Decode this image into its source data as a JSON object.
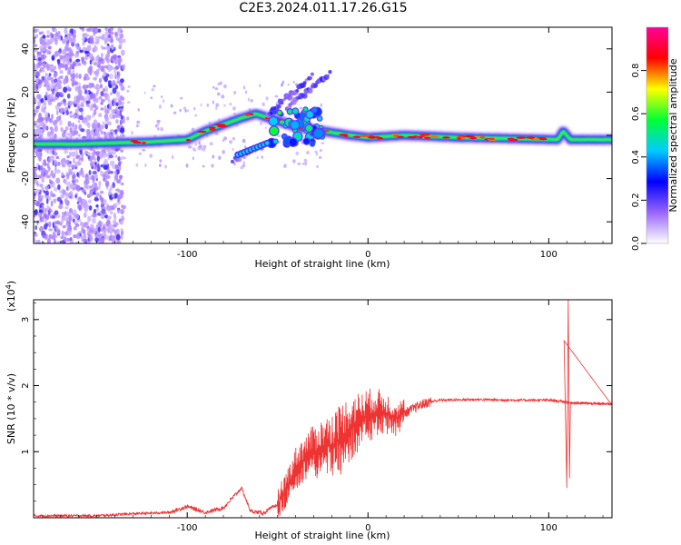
{
  "page_title": "C2E3.2024.011.17.26.G15",
  "chart_data": [
    {
      "type": "heatmap",
      "xlabel": "Height of straight line (km)",
      "ylabel": "Frequency (Hz)",
      "xlim": [
        -185,
        135
      ],
      "ylim": [
        -50,
        50
      ],
      "x_ticks": [
        -100,
        0,
        100
      ],
      "y_ticks": [
        -40,
        -20,
        0,
        20,
        40
      ],
      "colorbar": {
        "label": "Normalized spectral amplitude",
        "range": [
          0,
          1
        ],
        "ticks": [
          "0.0",
          "0.2",
          "0.4",
          "0.6",
          "0.8"
        ],
        "tick_values": [
          0,
          0.2,
          0.4,
          0.6,
          0.8
        ],
        "colormap": [
          "#ffffff",
          "#9966ff",
          "#0000ff",
          "#00ccff",
          "#00ff33",
          "#ffff00",
          "#ff0000",
          "#ff0099"
        ]
      },
      "ridge": [
        {
          "x": -185,
          "y": -4
        },
        {
          "x": -160,
          "y": -4
        },
        {
          "x": -140,
          "y": -3.5
        },
        {
          "x": -120,
          "y": -3
        },
        {
          "x": -100,
          "y": -2
        },
        {
          "x": -90,
          "y": 2
        },
        {
          "x": -80,
          "y": 5
        },
        {
          "x": -70,
          "y": 8
        },
        {
          "x": -62,
          "y": 10
        },
        {
          "x": -40,
          "y": 4
        },
        {
          "x": -25,
          "y": 2
        },
        {
          "x": -10,
          "y": 0
        },
        {
          "x": 0,
          "y": -1
        },
        {
          "x": 20,
          "y": 0
        },
        {
          "x": 50,
          "y": -1
        },
        {
          "x": 80,
          "y": -1.5
        },
        {
          "x": 105,
          "y": -2
        },
        {
          "x": 108,
          "y": 2
        },
        {
          "x": 112,
          "y": -2
        },
        {
          "x": 135,
          "y": -2
        }
      ],
      "noise_band_x": [
        -185,
        -135
      ]
    },
    {
      "type": "line",
      "xlabel": "Height of straight line (km)",
      "ylabel": "SNR (10 * v/v)",
      "y_multiplier": "(x10",
      "y_multiplier_exp": "4",
      "y_multiplier_close": ")",
      "xlim": [
        -185,
        135
      ],
      "ylim": [
        0,
        3.3
      ],
      "x_ticks": [
        -100,
        0,
        100
      ],
      "y_ticks": [
        1,
        2,
        3
      ],
      "color": "#ee3333",
      "envelope": [
        {
          "x": -185,
          "y": 0.03
        },
        {
          "x": -150,
          "y": 0.03
        },
        {
          "x": -130,
          "y": 0.06
        },
        {
          "x": -110,
          "y": 0.08
        },
        {
          "x": -100,
          "y": 0.17
        },
        {
          "x": -90,
          "y": 0.08
        },
        {
          "x": -80,
          "y": 0.15
        },
        {
          "x": -70,
          "y": 0.45
        },
        {
          "x": -65,
          "y": 0.1
        },
        {
          "x": -58,
          "y": 0.07
        },
        {
          "x": -50,
          "y": 0.2
        },
        {
          "x": -45,
          "y": 0.45
        },
        {
          "x": -40,
          "y": 0.75
        },
        {
          "x": -35,
          "y": 0.9
        },
        {
          "x": -30,
          "y": 1.0
        },
        {
          "x": -25,
          "y": 1.05
        },
        {
          "x": -20,
          "y": 1.1
        },
        {
          "x": -15,
          "y": 1.2
        },
        {
          "x": -10,
          "y": 1.35
        },
        {
          "x": -5,
          "y": 1.45
        },
        {
          "x": 0,
          "y": 1.55
        },
        {
          "x": 5,
          "y": 1.6
        },
        {
          "x": 10,
          "y": 1.58
        },
        {
          "x": 15,
          "y": 1.5
        },
        {
          "x": 20,
          "y": 1.58
        },
        {
          "x": 25,
          "y": 1.65
        },
        {
          "x": 30,
          "y": 1.72
        },
        {
          "x": 35,
          "y": 1.76
        },
        {
          "x": 40,
          "y": 1.78
        },
        {
          "x": 60,
          "y": 1.79
        },
        {
          "x": 80,
          "y": 1.78
        },
        {
          "x": 100,
          "y": 1.78
        },
        {
          "x": 108,
          "y": 1.76
        },
        {
          "x": 112,
          "y": 1.74
        },
        {
          "x": 135,
          "y": 1.72
        }
      ],
      "spikes": [
        {
          "x": 108.5,
          "y": 2.68
        },
        {
          "x": 110,
          "y": 0.45
        },
        {
          "x": 110.8,
          "y": 3.3
        },
        {
          "x": 111.5,
          "y": 0.6
        }
      ]
    }
  ]
}
